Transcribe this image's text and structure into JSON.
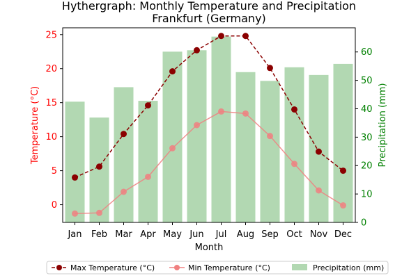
{
  "chart_data": {
    "type": "bar+line",
    "title_line1": "Hythergraph: Monthly Temperature and Precipitation",
    "title_line2": "Frankfurt (Germany)",
    "xlabel": "Month",
    "ylabel_left": "Temperature (°C)",
    "ylabel_right": "Precipitation (mm)",
    "categories": [
      "Jan",
      "Feb",
      "Mar",
      "Apr",
      "May",
      "Jun",
      "Jul",
      "Aug",
      "Sep",
      "Oct",
      "Nov",
      "Dec"
    ],
    "ylim_left": [
      -2.6,
      26.0
    ],
    "yticks_left": [
      0,
      5,
      10,
      15,
      20,
      25
    ],
    "ylim_right": [
      0,
      68.5
    ],
    "yticks_right": [
      0,
      10,
      20,
      30,
      40,
      50,
      60
    ],
    "series": [
      {
        "name": "Max Temperature (°C)",
        "axis": "left",
        "kind": "line",
        "style": "dashed",
        "color": "#8b0000",
        "values": [
          4.0,
          5.6,
          10.4,
          14.6,
          19.6,
          22.7,
          24.8,
          24.8,
          20.1,
          14.0,
          7.8,
          5.0
        ]
      },
      {
        "name": "Min Temperature (°C)",
        "axis": "left",
        "kind": "line",
        "style": "solid",
        "color": "#f08080",
        "values": [
          -1.3,
          -1.2,
          1.9,
          4.1,
          8.3,
          11.7,
          13.7,
          13.4,
          10.1,
          6.0,
          2.1,
          -0.1
        ]
      },
      {
        "name": "Precipitation (mm)",
        "axis": "right",
        "kind": "bar",
        "color": "#b2d8b2",
        "values": [
          42.5,
          36.9,
          47.6,
          42.8,
          60.1,
          60.6,
          65.4,
          52.9,
          49.8,
          54.6,
          51.9,
          55.8
        ]
      }
    ],
    "left_axis_color": "#ff0000",
    "right_axis_color": "#008000",
    "legend_position": "bottom-center"
  }
}
